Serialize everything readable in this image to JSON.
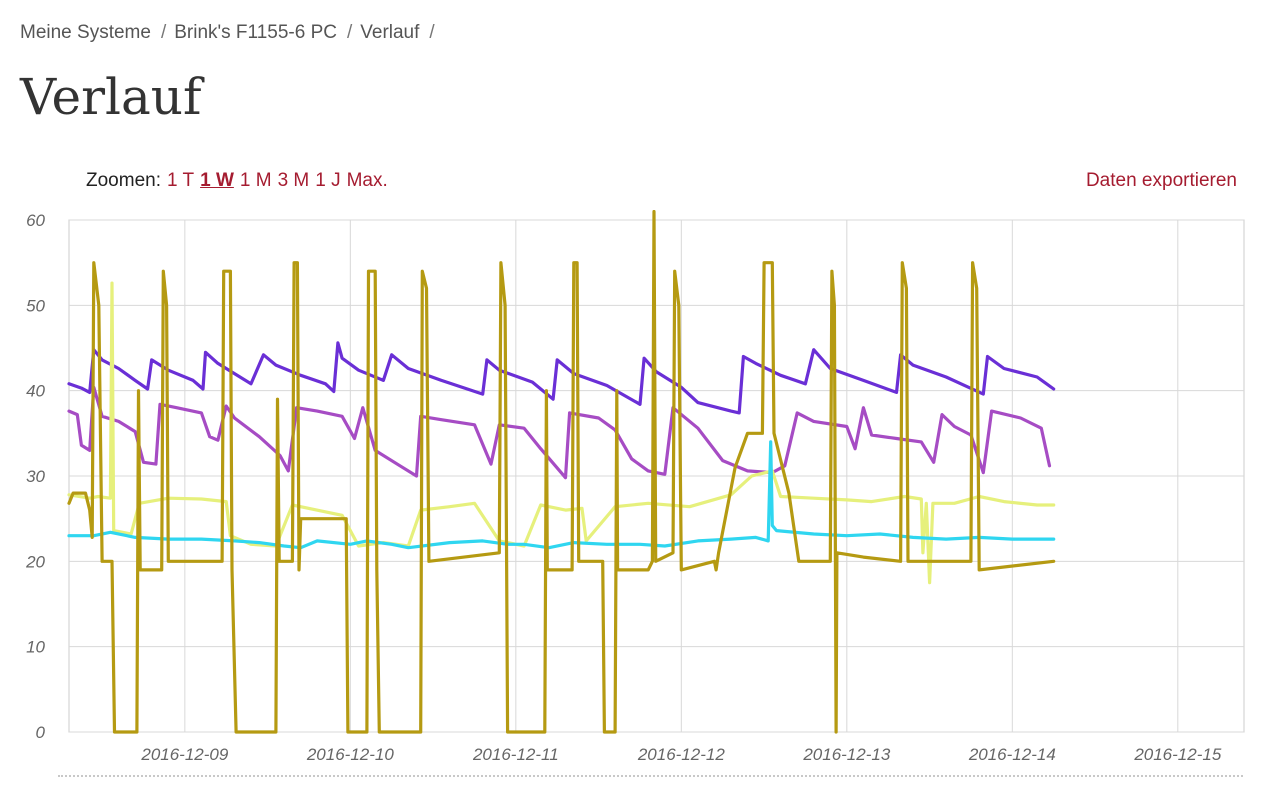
{
  "breadcrumb": [
    {
      "label": "Meine Systeme"
    },
    {
      "label": "Brink's F1155-6 PC"
    },
    {
      "label": "Verlauf"
    }
  ],
  "page_title": "Verlauf",
  "zoom": {
    "label": "Zoomen:",
    "options": [
      "1 T",
      "1 W",
      "1 M",
      "3 M",
      "1 J",
      "Max."
    ],
    "active": "1 W"
  },
  "export_label": "Daten exportieren",
  "chart_data": {
    "type": "line",
    "title": "",
    "xlabel": "",
    "ylabel": "",
    "x_range": [
      "2016-12-08 07:00",
      "2016-12-15 10:00"
    ],
    "ylim": [
      0,
      60
    ],
    "y_ticks": [
      0,
      10,
      20,
      30,
      40,
      50,
      60
    ],
    "x_ticks": [
      "2016-12-09",
      "2016-12-10",
      "2016-12-11",
      "2016-12-12",
      "2016-12-13",
      "2016-12-14",
      "2016-12-15"
    ],
    "grid": true,
    "legend": "none",
    "series": [
      {
        "color": "#6a2fd6",
        "points": [
          [
            0,
            40.8
          ],
          [
            0.15,
            40.3
          ],
          [
            0.25,
            39.8
          ],
          [
            0.3,
            44.8
          ],
          [
            0.4,
            43.6
          ],
          [
            0.6,
            42.6
          ],
          [
            0.8,
            41.2
          ],
          [
            0.95,
            40.2
          ],
          [
            1.0,
            43.6
          ],
          [
            1.2,
            42.4
          ],
          [
            1.5,
            41.2
          ],
          [
            1.62,
            40.2
          ],
          [
            1.65,
            44.5
          ],
          [
            1.8,
            43.2
          ],
          [
            2.0,
            42.0
          ],
          [
            2.2,
            40.8
          ],
          [
            2.35,
            44.2
          ],
          [
            2.5,
            43.0
          ],
          [
            2.8,
            41.8
          ],
          [
            3.1,
            40.8
          ],
          [
            3.2,
            39.9
          ],
          [
            3.25,
            45.6
          ],
          [
            3.3,
            43.8
          ],
          [
            3.5,
            42.4
          ],
          [
            3.8,
            41.2
          ],
          [
            3.9,
            44.2
          ],
          [
            4.1,
            42.6
          ],
          [
            4.5,
            41.2
          ],
          [
            5.0,
            39.6
          ],
          [
            5.05,
            43.6
          ],
          [
            5.2,
            42.4
          ],
          [
            5.6,
            41.0
          ],
          [
            5.85,
            39.0
          ],
          [
            5.9,
            43.6
          ],
          [
            6.1,
            42.0
          ],
          [
            6.5,
            40.6
          ],
          [
            6.9,
            38.4
          ],
          [
            6.95,
            43.8
          ],
          [
            7.1,
            42.2
          ],
          [
            7.4,
            40.4
          ],
          [
            7.6,
            38.6
          ],
          [
            8.0,
            37.6
          ],
          [
            8.1,
            37.4
          ],
          [
            8.15,
            44.0
          ],
          [
            8.3,
            43.2
          ],
          [
            8.6,
            41.8
          ],
          [
            8.9,
            40.8
          ],
          [
            9.0,
            44.8
          ],
          [
            9.2,
            42.6
          ],
          [
            9.6,
            41.2
          ],
          [
            10.0,
            39.8
          ],
          [
            10.05,
            44.2
          ],
          [
            10.2,
            43.0
          ],
          [
            10.6,
            41.6
          ],
          [
            11.05,
            39.6
          ],
          [
            11.1,
            44.0
          ],
          [
            11.3,
            42.6
          ],
          [
            11.7,
            41.6
          ],
          [
            11.9,
            40.2
          ]
        ]
      },
      {
        "color": "#a64cc4",
        "points": [
          [
            0,
            37.6
          ],
          [
            0.1,
            37.2
          ],
          [
            0.15,
            33.6
          ],
          [
            0.25,
            33.0
          ],
          [
            0.3,
            40.4
          ],
          [
            0.4,
            37.0
          ],
          [
            0.6,
            36.4
          ],
          [
            0.8,
            35.2
          ],
          [
            0.9,
            31.6
          ],
          [
            1.05,
            31.4
          ],
          [
            1.1,
            38.4
          ],
          [
            1.3,
            38.0
          ],
          [
            1.6,
            37.4
          ],
          [
            1.7,
            34.6
          ],
          [
            1.8,
            34.2
          ],
          [
            1.9,
            38.2
          ],
          [
            2.0,
            36.8
          ],
          [
            2.3,
            34.6
          ],
          [
            2.55,
            32.4
          ],
          [
            2.65,
            30.6
          ],
          [
            2.75,
            38.0
          ],
          [
            3.0,
            37.6
          ],
          [
            3.3,
            37.0
          ],
          [
            3.45,
            34.4
          ],
          [
            3.55,
            38.0
          ],
          [
            3.7,
            33.0
          ],
          [
            4.0,
            31.2
          ],
          [
            4.2,
            30.0
          ],
          [
            4.25,
            37.0
          ],
          [
            4.5,
            36.6
          ],
          [
            4.9,
            36.0
          ],
          [
            5.1,
            31.4
          ],
          [
            5.2,
            36.0
          ],
          [
            5.5,
            35.6
          ],
          [
            5.7,
            33.2
          ],
          [
            6.0,
            29.8
          ],
          [
            6.05,
            37.4
          ],
          [
            6.4,
            36.8
          ],
          [
            6.6,
            35.4
          ],
          [
            6.8,
            32.0
          ],
          [
            7.0,
            30.6
          ],
          [
            7.2,
            30.2
          ],
          [
            7.3,
            38.0
          ],
          [
            7.6,
            35.6
          ],
          [
            7.9,
            31.8
          ],
          [
            8.2,
            30.6
          ],
          [
            8.5,
            30.4
          ],
          [
            8.65,
            31.2
          ],
          [
            8.8,
            37.4
          ],
          [
            9.0,
            36.4
          ],
          [
            9.4,
            35.8
          ],
          [
            9.5,
            33.2
          ],
          [
            9.6,
            38.0
          ],
          [
            9.7,
            34.8
          ],
          [
            10.0,
            34.4
          ],
          [
            10.3,
            34.0
          ],
          [
            10.45,
            31.6
          ],
          [
            10.55,
            37.2
          ],
          [
            10.7,
            35.8
          ],
          [
            10.9,
            34.8
          ],
          [
            11.05,
            30.4
          ],
          [
            11.15,
            37.6
          ],
          [
            11.5,
            36.8
          ],
          [
            11.75,
            35.6
          ],
          [
            11.85,
            31.2
          ]
        ]
      },
      {
        "color": "#e6f07c",
        "points": [
          [
            0,
            27.8
          ],
          [
            0.25,
            27.4
          ],
          [
            0.35,
            27.6
          ],
          [
            0.5,
            27.4
          ],
          [
            0.52,
            52.6
          ],
          [
            0.54,
            23.6
          ],
          [
            0.75,
            23.2
          ],
          [
            0.85,
            26.8
          ],
          [
            1.2,
            27.4
          ],
          [
            1.6,
            27.3
          ],
          [
            1.9,
            27.0
          ],
          [
            1.95,
            23.0
          ],
          [
            2.2,
            22.0
          ],
          [
            2.5,
            21.8
          ],
          [
            2.7,
            26.6
          ],
          [
            3.3,
            25.4
          ],
          [
            3.5,
            21.8
          ],
          [
            3.8,
            22.2
          ],
          [
            4.1,
            21.8
          ],
          [
            4.25,
            26.0
          ],
          [
            4.6,
            26.4
          ],
          [
            4.9,
            26.8
          ],
          [
            5.2,
            22.4
          ],
          [
            5.5,
            21.8
          ],
          [
            5.7,
            26.6
          ],
          [
            6.0,
            26.0
          ],
          [
            6.2,
            26.2
          ],
          [
            6.25,
            22.4
          ],
          [
            6.6,
            26.4
          ],
          [
            7.0,
            26.8
          ],
          [
            7.5,
            26.4
          ],
          [
            8.0,
            27.8
          ],
          [
            8.25,
            30.0
          ],
          [
            8.5,
            30.6
          ],
          [
            8.6,
            27.6
          ],
          [
            9.0,
            27.4
          ],
          [
            9.4,
            27.2
          ],
          [
            9.7,
            27.0
          ],
          [
            10.1,
            27.6
          ],
          [
            10.3,
            27.3
          ],
          [
            10.32,
            21.0
          ],
          [
            10.36,
            26.8
          ],
          [
            10.4,
            17.5
          ],
          [
            10.44,
            26.8
          ],
          [
            10.7,
            26.8
          ],
          [
            11.0,
            27.6
          ],
          [
            11.3,
            27.0
          ],
          [
            11.7,
            26.6
          ],
          [
            11.9,
            26.6
          ]
        ]
      },
      {
        "color": "#2fd6f0",
        "points": [
          [
            0,
            23.0
          ],
          [
            0.3,
            23.0
          ],
          [
            0.5,
            23.4
          ],
          [
            0.8,
            22.8
          ],
          [
            1.2,
            22.6
          ],
          [
            1.6,
            22.6
          ],
          [
            2.0,
            22.4
          ],
          [
            2.3,
            22.2
          ],
          [
            2.6,
            21.8
          ],
          [
            2.8,
            21.6
          ],
          [
            3.0,
            22.4
          ],
          [
            3.4,
            22.0
          ],
          [
            3.6,
            22.4
          ],
          [
            3.9,
            22.0
          ],
          [
            4.1,
            21.6
          ],
          [
            4.6,
            22.2
          ],
          [
            5.0,
            22.4
          ],
          [
            5.3,
            22.0
          ],
          [
            5.5,
            22.0
          ],
          [
            5.8,
            21.6
          ],
          [
            6.1,
            22.2
          ],
          [
            6.5,
            22.0
          ],
          [
            6.9,
            22.0
          ],
          [
            7.2,
            21.8
          ],
          [
            7.6,
            22.4
          ],
          [
            8.0,
            22.6
          ],
          [
            8.3,
            22.8
          ],
          [
            8.45,
            22.4
          ],
          [
            8.48,
            34.0
          ],
          [
            8.5,
            24.2
          ],
          [
            8.55,
            23.6
          ],
          [
            9.0,
            23.2
          ],
          [
            9.4,
            23.0
          ],
          [
            9.8,
            23.2
          ],
          [
            10.2,
            22.8
          ],
          [
            10.6,
            22.6
          ],
          [
            11.0,
            22.8
          ],
          [
            11.4,
            22.6
          ],
          [
            11.9,
            22.6
          ]
        ]
      },
      {
        "color": "#b59a12",
        "points": [
          [
            0,
            26.8
          ],
          [
            0.05,
            28.0
          ],
          [
            0.2,
            28.0
          ],
          [
            0.25,
            26.0
          ],
          [
            0.28,
            22.8
          ],
          [
            0.3,
            55.0
          ],
          [
            0.36,
            50.0
          ],
          [
            0.4,
            20.0
          ],
          [
            0.52,
            20.0
          ],
          [
            0.55,
            0
          ],
          [
            0.82,
            0
          ],
          [
            0.84,
            40.0
          ],
          [
            0.86,
            19.0
          ],
          [
            1.12,
            19.0
          ],
          [
            1.14,
            54.0
          ],
          [
            1.18,
            50.0
          ],
          [
            1.2,
            20.0
          ],
          [
            1.85,
            20.0
          ],
          [
            1.87,
            54.0
          ],
          [
            1.95,
            54.0
          ],
          [
            1.97,
            19.0
          ],
          [
            2.02,
            0
          ],
          [
            2.5,
            0
          ],
          [
            2.52,
            39.0
          ],
          [
            2.54,
            20.0
          ],
          [
            2.7,
            20.0
          ],
          [
            2.72,
            55.0
          ],
          [
            2.76,
            55.0
          ],
          [
            2.78,
            19.0
          ],
          [
            2.8,
            25.0
          ],
          [
            3.35,
            25.0
          ],
          [
            3.37,
            0
          ],
          [
            3.6,
            0
          ],
          [
            3.62,
            54.0
          ],
          [
            3.7,
            54.0
          ],
          [
            3.72,
            19.0
          ],
          [
            3.75,
            0
          ],
          [
            4.25,
            0
          ],
          [
            4.27,
            54.0
          ],
          [
            4.32,
            52.0
          ],
          [
            4.35,
            20.0
          ],
          [
            5.2,
            21.0
          ],
          [
            5.22,
            55.0
          ],
          [
            5.27,
            50.0
          ],
          [
            5.3,
            0
          ],
          [
            5.75,
            0
          ],
          [
            5.77,
            40.0
          ],
          [
            5.78,
            19.0
          ],
          [
            6.08,
            19.0
          ],
          [
            6.1,
            55.0
          ],
          [
            6.14,
            55.0
          ],
          [
            6.16,
            20.0
          ],
          [
            6.45,
            20.0
          ],
          [
            6.47,
            0
          ],
          [
            6.6,
            0
          ],
          [
            6.62,
            40.0
          ],
          [
            6.63,
            19.0
          ],
          [
            7.0,
            19.0
          ],
          [
            7.05,
            20.0
          ],
          [
            7.07,
            61.0
          ],
          [
            7.09,
            20.0
          ],
          [
            7.3,
            21.0
          ],
          [
            7.32,
            54.0
          ],
          [
            7.37,
            50.0
          ],
          [
            7.4,
            19.0
          ],
          [
            7.8,
            20.0
          ],
          [
            7.82,
            19.0
          ],
          [
            7.85,
            21.0
          ],
          [
            8.05,
            31.0
          ],
          [
            8.2,
            35.0
          ],
          [
            8.38,
            35.0
          ],
          [
            8.4,
            55.0
          ],
          [
            8.5,
            55.0
          ],
          [
            8.52,
            35.0
          ],
          [
            8.7,
            28.0
          ],
          [
            8.82,
            20.0
          ],
          [
            9.2,
            20.0
          ],
          [
            9.22,
            54.0
          ],
          [
            9.25,
            50.0
          ],
          [
            9.27,
            0
          ],
          [
            9.28,
            21.0
          ],
          [
            9.6,
            20.5
          ],
          [
            10.05,
            20.0
          ],
          [
            10.07,
            55.0
          ],
          [
            10.12,
            52.0
          ],
          [
            10.14,
            20.0
          ],
          [
            10.9,
            20.0
          ],
          [
            10.92,
            55.0
          ],
          [
            10.97,
            52.0
          ],
          [
            11.0,
            19.0
          ],
          [
            11.9,
            20.0
          ]
        ]
      }
    ]
  }
}
